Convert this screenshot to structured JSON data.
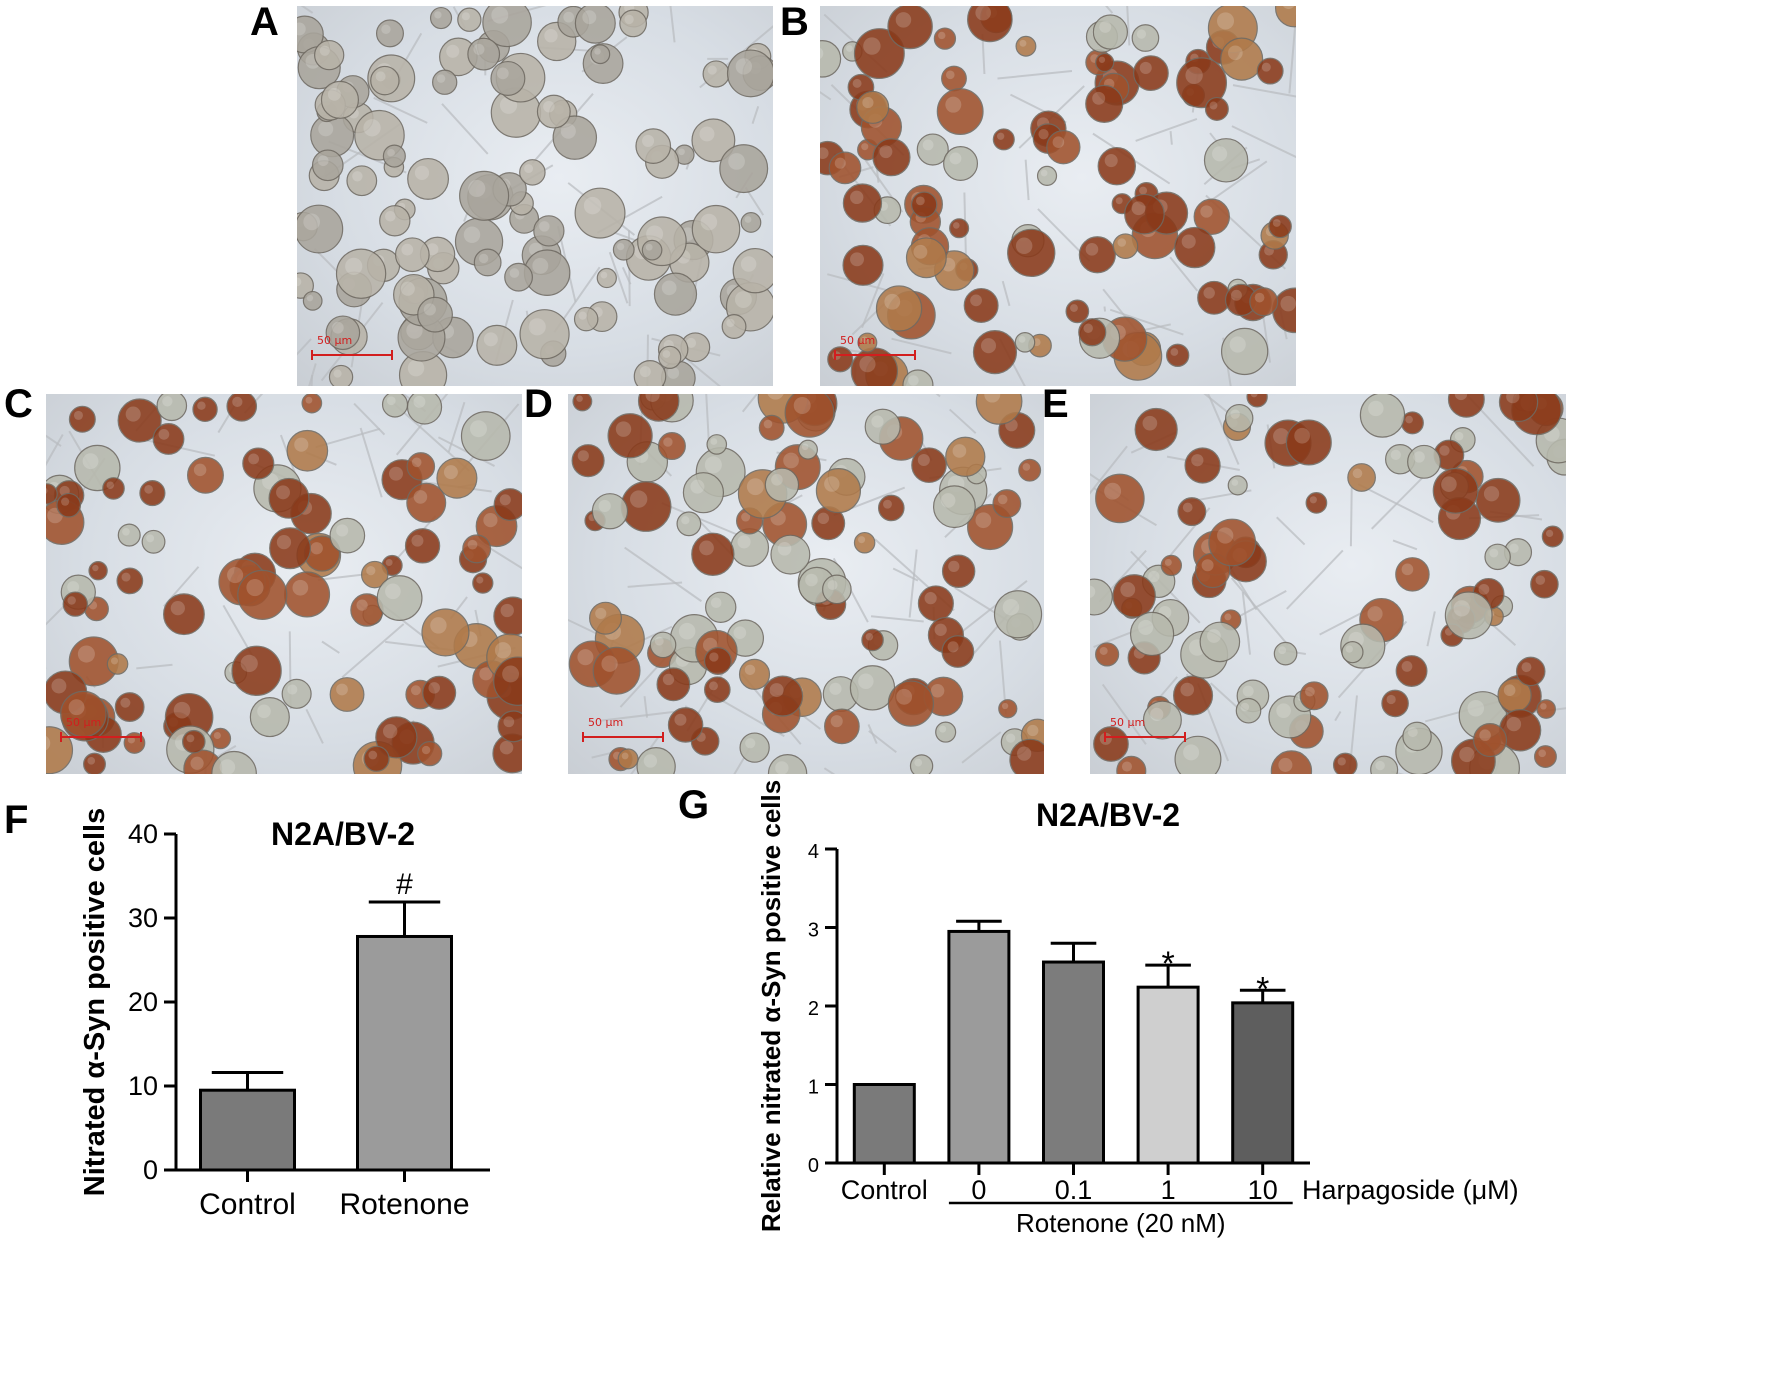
{
  "panels": {
    "A": {
      "letter": "A",
      "scale_label": "50 μm",
      "stain": "none"
    },
    "B": {
      "letter": "B",
      "scale_label": "50 μm",
      "stain": "heavy"
    },
    "C": {
      "letter": "C",
      "scale_label": "50 μm",
      "stain": "heavy"
    },
    "D": {
      "letter": "D",
      "scale_label": "50 μm",
      "stain": "medium"
    },
    "E": {
      "letter": "E",
      "scale_label": "50 μm",
      "stain": "medium"
    }
  },
  "colors": {
    "bar_dark": "#7a7a7a",
    "bar_mid": "#9b9b9b",
    "bar_light": "#cfcfcf",
    "bar_darker": "#5e5e5e",
    "stain_brown": "#8a3a1a",
    "cell_gray": "#a9a59c"
  },
  "chart_data": [
    {
      "panel_letter": "F",
      "type": "bar",
      "title": "N2A/BV-2",
      "ylabel": "Nitrated α-Syn positive cells",
      "xlabel": "",
      "categories": [
        "Control",
        "Rotenone"
      ],
      "values": [
        9.5,
        27.8
      ],
      "errors": [
        2.1,
        4.1
      ],
      "bar_colors": [
        "#7a7a7a",
        "#9b9b9b"
      ],
      "annotations": [
        "",
        "#"
      ],
      "ylim": [
        0,
        40
      ],
      "yticks": [
        "0",
        "10",
        "20",
        "30",
        "40"
      ],
      "grid": false
    },
    {
      "panel_letter": "G",
      "type": "bar",
      "title": "N2A/BV-2",
      "ylabel": "Relative nitrated α-Syn positive cells",
      "xlabel": "",
      "categories": [
        "Control",
        "0",
        "0.1",
        "1",
        "10"
      ],
      "values": [
        1.0,
        2.95,
        2.56,
        2.24,
        2.04
      ],
      "errors": [
        0,
        0.13,
        0.24,
        0.28,
        0.16
      ],
      "bar_colors": [
        "#7a7a7a",
        "#9b9b9b",
        "#7c7c7c",
        "#cfcfcf",
        "#5e5e5e"
      ],
      "annotations": [
        "",
        "",
        "",
        "*",
        "*"
      ],
      "ylim": [
        0,
        4
      ],
      "yticks": [
        "0",
        "1",
        "2",
        "3",
        "4"
      ],
      "dose_label": "Harpagoside (μM)",
      "group_label": "Rotenone (20 nM)",
      "grid": false
    }
  ]
}
